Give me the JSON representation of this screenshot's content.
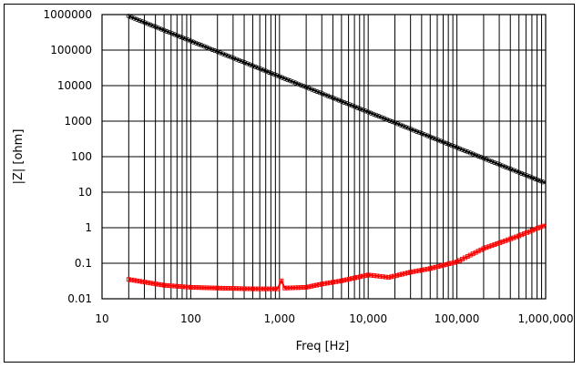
{
  "chart_data": {
    "type": "line",
    "title": "",
    "xlabel": "Freq [Hz]",
    "ylabel": "|Z| [ohm]",
    "xscale": "log",
    "yscale": "log",
    "xlim": [
      10,
      1000000
    ],
    "ylim": [
      0.01,
      1000000
    ],
    "grid": true,
    "legend": "none",
    "x_tick_labels": [
      "10",
      "100",
      "1,000",
      "10,000",
      "100,000",
      "1,000,000"
    ],
    "y_tick_labels": [
      "0.01",
      "0.1",
      "1",
      "10",
      "100",
      "1000",
      "10000",
      "100000",
      "1000000"
    ],
    "series": [
      {
        "color": "#000000",
        "marker": "open-circle",
        "x": [
          20,
          50,
          100,
          200,
          500,
          1000,
          2000,
          5000,
          10000,
          20000,
          50000,
          100000,
          200000,
          500000,
          1000000
        ],
        "y": [
          904000,
          362000,
          181000,
          90400,
          36200,
          18100,
          9040,
          3620,
          1810,
          904,
          362,
          181,
          90.4,
          36.2,
          18.1
        ]
      },
      {
        "color": "#ff0000",
        "marker": "open-square",
        "x": [
          20,
          50,
          100,
          200,
          500,
          950,
          1050,
          1150,
          2000,
          3000,
          5000,
          10000,
          17000,
          30000,
          50000,
          100000,
          200000,
          500000,
          1000000
        ],
        "y": [
          0.035,
          0.024,
          0.021,
          0.02,
          0.019,
          0.019,
          0.032,
          0.02,
          0.021,
          0.026,
          0.032,
          0.047,
          0.04,
          0.056,
          0.071,
          0.11,
          0.26,
          0.59,
          1.2
        ]
      }
    ]
  }
}
